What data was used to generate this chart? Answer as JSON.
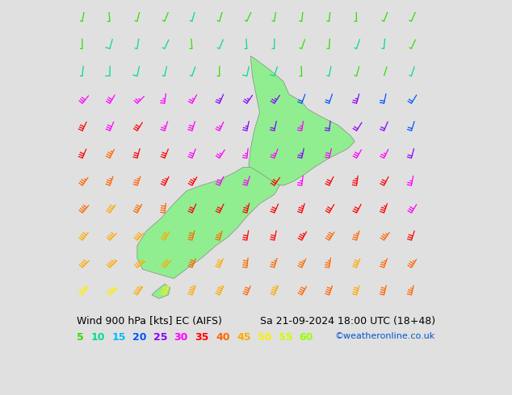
{
  "title_left": "Wind 900 hPa [kts] EC (AIFS)",
  "title_right": "Sa 21-09-2024 18:00 UTC (18+48)",
  "credit": "©weatheronline.co.uk",
  "legend_values": [
    5,
    10,
    15,
    20,
    25,
    30,
    35,
    40,
    45,
    50,
    55,
    60
  ],
  "legend_colors": [
    "#33dd00",
    "#00dd88",
    "#00bbff",
    "#0055ff",
    "#8800ff",
    "#ff00ff",
    "#ff0000",
    "#ff6600",
    "#ffaa00",
    "#ffee00",
    "#ccff00",
    "#99ff00"
  ],
  "bg_color": "#e0e0e0",
  "map_land_color": "#90ee90",
  "map_border_color": "#888888",
  "figsize": [
    6.34,
    4.9
  ],
  "dpi": 100,
  "font_size_title": 9,
  "font_size_legend": 9,
  "font_size_credit": 8,
  "lon_min": 163,
  "lon_max": 183,
  "lat_min": -48,
  "lat_max": -32
}
